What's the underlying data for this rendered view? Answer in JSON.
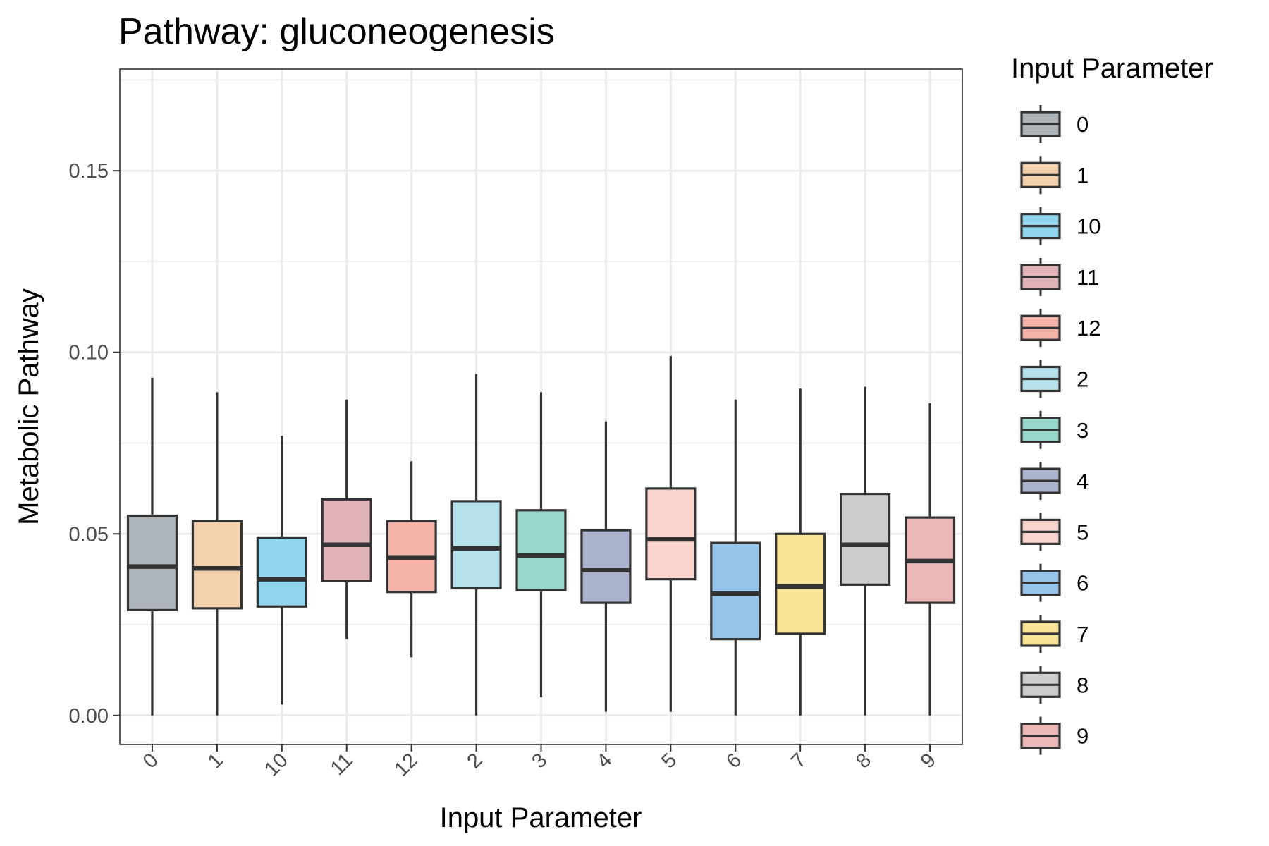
{
  "chart_data": {
    "type": "boxplot",
    "title": "Pathway: gluconeogenesis",
    "xlabel": "Input Parameter",
    "ylabel": "Metabolic Pathway",
    "ylim": [
      -0.008,
      0.178
    ],
    "y_ticks": [
      0.0,
      0.05,
      0.1,
      0.15
    ],
    "y_tick_labels": [
      "0.00",
      "0.05",
      "0.10",
      "0.15"
    ],
    "grid": true,
    "legend": {
      "title": "Input Parameter",
      "position": "right"
    },
    "categories": [
      "0",
      "1",
      "10",
      "11",
      "12",
      "2",
      "3",
      "4",
      "5",
      "6",
      "7",
      "8",
      "9"
    ],
    "colors": [
      "#adb5bb",
      "#f4d1ad",
      "#91d4ee",
      "#e0b4b8",
      "#f5b2a8",
      "#b6e2ec",
      "#96d8cb",
      "#abb4cc",
      "#f8d4cc",
      "#97c4ea",
      "#f8e497",
      "#cdcdcd",
      "#ebb7b7"
    ],
    "boxes": [
      {
        "category": "0",
        "whisker_low": 0.0,
        "q1": 0.029,
        "median": 0.041,
        "q3": 0.055,
        "whisker_high": 0.093
      },
      {
        "category": "1",
        "whisker_low": 0.0,
        "q1": 0.0295,
        "median": 0.0405,
        "q3": 0.0535,
        "whisker_high": 0.089
      },
      {
        "category": "10",
        "whisker_low": 0.003,
        "q1": 0.03,
        "median": 0.0375,
        "q3": 0.049,
        "whisker_high": 0.077
      },
      {
        "category": "11",
        "whisker_low": 0.021,
        "q1": 0.037,
        "median": 0.047,
        "q3": 0.0595,
        "whisker_high": 0.087
      },
      {
        "category": "12",
        "whisker_low": 0.016,
        "q1": 0.034,
        "median": 0.0435,
        "q3": 0.0535,
        "whisker_high": 0.07
      },
      {
        "category": "2",
        "whisker_low": 0.0,
        "q1": 0.035,
        "median": 0.046,
        "q3": 0.059,
        "whisker_high": 0.094
      },
      {
        "category": "3",
        "whisker_low": 0.005,
        "q1": 0.0345,
        "median": 0.044,
        "q3": 0.0565,
        "whisker_high": 0.089
      },
      {
        "category": "4",
        "whisker_low": 0.001,
        "q1": 0.031,
        "median": 0.04,
        "q3": 0.051,
        "whisker_high": 0.081
      },
      {
        "category": "5",
        "whisker_low": 0.001,
        "q1": 0.0375,
        "median": 0.0485,
        "q3": 0.0625,
        "whisker_high": 0.099
      },
      {
        "category": "6",
        "whisker_low": 0.0,
        "q1": 0.021,
        "median": 0.0335,
        "q3": 0.0475,
        "whisker_high": 0.087
      },
      {
        "category": "7",
        "whisker_low": 0.0,
        "q1": 0.0225,
        "median": 0.0355,
        "q3": 0.05,
        "whisker_high": 0.09
      },
      {
        "category": "8",
        "whisker_low": 0.0,
        "q1": 0.036,
        "median": 0.047,
        "q3": 0.061,
        "whisker_high": 0.0905
      },
      {
        "category": "9",
        "whisker_low": 0.0,
        "q1": 0.031,
        "median": 0.0425,
        "q3": 0.0545,
        "whisker_high": 0.086
      }
    ]
  }
}
